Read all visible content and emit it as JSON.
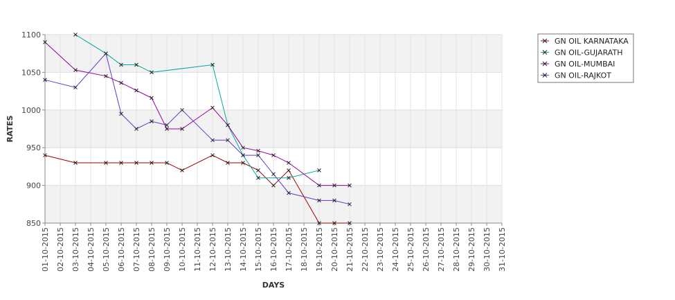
{
  "chart_data": {
    "type": "line",
    "xlabel": "DAYS",
    "ylabel": "RATES",
    "ylim": [
      850,
      1100
    ],
    "y_ticks": [
      850,
      900,
      950,
      1000,
      1050,
      1100
    ],
    "y_tick_labels": [
      "850",
      "900",
      "950",
      "1000",
      "1050",
      "1100"
    ],
    "grid": true,
    "banded_background": true,
    "legend_position": "top-right",
    "categories": [
      "01-10-2015",
      "02-10-2015",
      "03-10-2015",
      "04-10-2015",
      "05-10-2015",
      "06-10-2015",
      "07-10-2015",
      "08-10-2015",
      "09-10-2015",
      "10-10-2015",
      "11-10-2015",
      "12-10-2015",
      "13-10-2015",
      "14-10-2015",
      "15-10-2015",
      "16-10-2015",
      "17-10-2015",
      "18-10-2015",
      "19-10-2015",
      "20-10-2015",
      "21-10-2015",
      "22-10-2015",
      "23-10-2015",
      "24-10-2015",
      "25-10-2015",
      "26-10-2015",
      "27-10-2015",
      "28-10-2015",
      "29-10-2015",
      "30-10-2015",
      "31-10-2015"
    ],
    "series": [
      {
        "name": "GN OIL KARNATAKA",
        "color": "#990000",
        "points": [
          {
            "x": "01-10-2015",
            "y": 940
          },
          {
            "x": "03-10-2015",
            "y": 930
          },
          {
            "x": "05-10-2015",
            "y": 930
          },
          {
            "x": "06-10-2015",
            "y": 930
          },
          {
            "x": "07-10-2015",
            "y": 930
          },
          {
            "x": "08-10-2015",
            "y": 930
          },
          {
            "x": "09-10-2015",
            "y": 930
          },
          {
            "x": "10-10-2015",
            "y": 920
          },
          {
            "x": "12-10-2015",
            "y": 940
          },
          {
            "x": "13-10-2015",
            "y": 930
          },
          {
            "x": "14-10-2015",
            "y": 930
          },
          {
            "x": "15-10-2015",
            "y": 920
          },
          {
            "x": "16-10-2015",
            "y": 900
          },
          {
            "x": "17-10-2015",
            "y": 920
          },
          {
            "x": "19-10-2015",
            "y": 850
          },
          {
            "x": "20-10-2015",
            "y": 850
          },
          {
            "x": "21-10-2015",
            "y": 850
          }
        ]
      },
      {
        "name": "GN OIL-GUJARATH",
        "color": "#00a89d",
        "points": [
          {
            "x": "03-10-2015",
            "y": 1100
          },
          {
            "x": "05-10-2015",
            "y": 1075
          },
          {
            "x": "06-10-2015",
            "y": 1060
          },
          {
            "x": "07-10-2015",
            "y": 1060
          },
          {
            "x": "08-10-2015",
            "y": 1050
          },
          {
            "x": "12-10-2015",
            "y": 1060
          },
          {
            "x": "13-10-2015",
            "y": 980
          },
          {
            "x": "14-10-2015",
            "y": 940
          },
          {
            "x": "15-10-2015",
            "y": 910
          },
          {
            "x": "17-10-2015",
            "y": 910
          },
          {
            "x": "19-10-2015",
            "y": 920
          }
        ]
      },
      {
        "name": "GN OIL-MUMBAI",
        "color": "#990099",
        "points": [
          {
            "x": "01-10-2015",
            "y": 1090
          },
          {
            "x": "03-10-2015",
            "y": 1053
          },
          {
            "x": "05-10-2015",
            "y": 1045
          },
          {
            "x": "06-10-2015",
            "y": 1036
          },
          {
            "x": "07-10-2015",
            "y": 1026
          },
          {
            "x": "08-10-2015",
            "y": 1016
          },
          {
            "x": "09-10-2015",
            "y": 975
          },
          {
            "x": "10-10-2015",
            "y": 975
          },
          {
            "x": "12-10-2015",
            "y": 1003
          },
          {
            "x": "13-10-2015",
            "y": 980
          },
          {
            "x": "14-10-2015",
            "y": 950
          },
          {
            "x": "15-10-2015",
            "y": 946
          },
          {
            "x": "16-10-2015",
            "y": 940
          },
          {
            "x": "17-10-2015",
            "y": 930
          },
          {
            "x": "19-10-2015",
            "y": 900
          },
          {
            "x": "20-10-2015",
            "y": 900
          },
          {
            "x": "21-10-2015",
            "y": 900
          }
        ]
      },
      {
        "name": "GN OIL-RAJKOT",
        "color": "#6633cc",
        "points": [
          {
            "x": "01-10-2015",
            "y": 1040
          },
          {
            "x": "03-10-2015",
            "y": 1030
          },
          {
            "x": "05-10-2015",
            "y": 1075
          },
          {
            "x": "06-10-2015",
            "y": 995
          },
          {
            "x": "07-10-2015",
            "y": 975
          },
          {
            "x": "08-10-2015",
            "y": 985
          },
          {
            "x": "09-10-2015",
            "y": 980
          },
          {
            "x": "10-10-2015",
            "y": 1000
          },
          {
            "x": "12-10-2015",
            "y": 960
          },
          {
            "x": "13-10-2015",
            "y": 960
          },
          {
            "x": "14-10-2015",
            "y": 940
          },
          {
            "x": "15-10-2015",
            "y": 940
          },
          {
            "x": "16-10-2015",
            "y": 915
          },
          {
            "x": "17-10-2015",
            "y": 890
          },
          {
            "x": "19-10-2015",
            "y": 880
          },
          {
            "x": "20-10-2015",
            "y": 880
          },
          {
            "x": "21-10-2015",
            "y": 875
          }
        ]
      }
    ]
  }
}
